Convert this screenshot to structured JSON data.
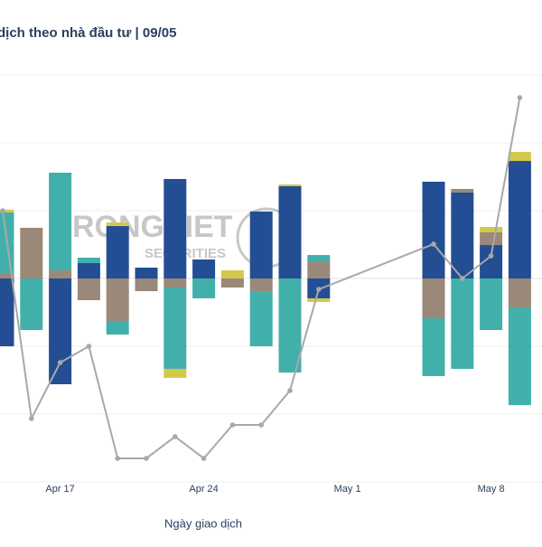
{
  "chart_data": {
    "type": "bar",
    "title": "dịch theo nhà đầu tư | 09/05",
    "x_label": "Ngày giao dịch",
    "watermark": [
      "RONGVIET",
      "SECURITIES"
    ],
    "categories": [
      null,
      null,
      "Apr 17",
      null,
      null,
      null,
      null,
      "Apr 24",
      null,
      null,
      null,
      null,
      "May 1",
      null,
      null,
      null,
      null,
      "May 8",
      null
    ],
    "ylim": [
      -3000,
      3000
    ],
    "yticks": [
      -3000,
      -2000,
      -1000,
      0,
      1000,
      2000,
      3000
    ],
    "grid": true,
    "barmode": "relative",
    "series": [
      {
        "color": "#234e93",
        "values": [
          -1000,
          0,
          -1560,
          227,
          773,
          160,
          1467,
          280,
          0,
          987,
          1360,
          -293,
          null,
          null,
          null,
          1427,
          1267,
          493,
          1733
        ]
      },
      {
        "color": "#9a8878",
        "values": [
          67,
          747,
          120,
          -320,
          -627,
          -187,
          -133,
          0,
          -133,
          -187,
          0,
          253,
          null,
          null,
          null,
          -587,
          53,
          187,
          -427
        ]
      },
      {
        "color": "#42b0aa",
        "values": [
          907,
          -760,
          1440,
          80,
          -200,
          0,
          -1200,
          -293,
          0,
          -813,
          -1387,
          93,
          null,
          null,
          null,
          -853,
          -1333,
          -760,
          -1440
        ]
      },
      {
        "color": "#d4c84a",
        "values": [
          40,
          0,
          0,
          0,
          53,
          0,
          -133,
          0,
          120,
          0,
          27,
          -53,
          null,
          null,
          null,
          0,
          0,
          80,
          133
        ]
      }
    ],
    "line": {
      "color": "#a8a8a8",
      "connect_gaps": true,
      "values": [
        1000,
        -2067,
        -1240,
        -1000,
        -2653,
        -2653,
        -2333,
        -2653,
        -2160,
        -2160,
        -1653,
        -160,
        null,
        null,
        null,
        507,
        0,
        333,
        2667
      ]
    }
  }
}
